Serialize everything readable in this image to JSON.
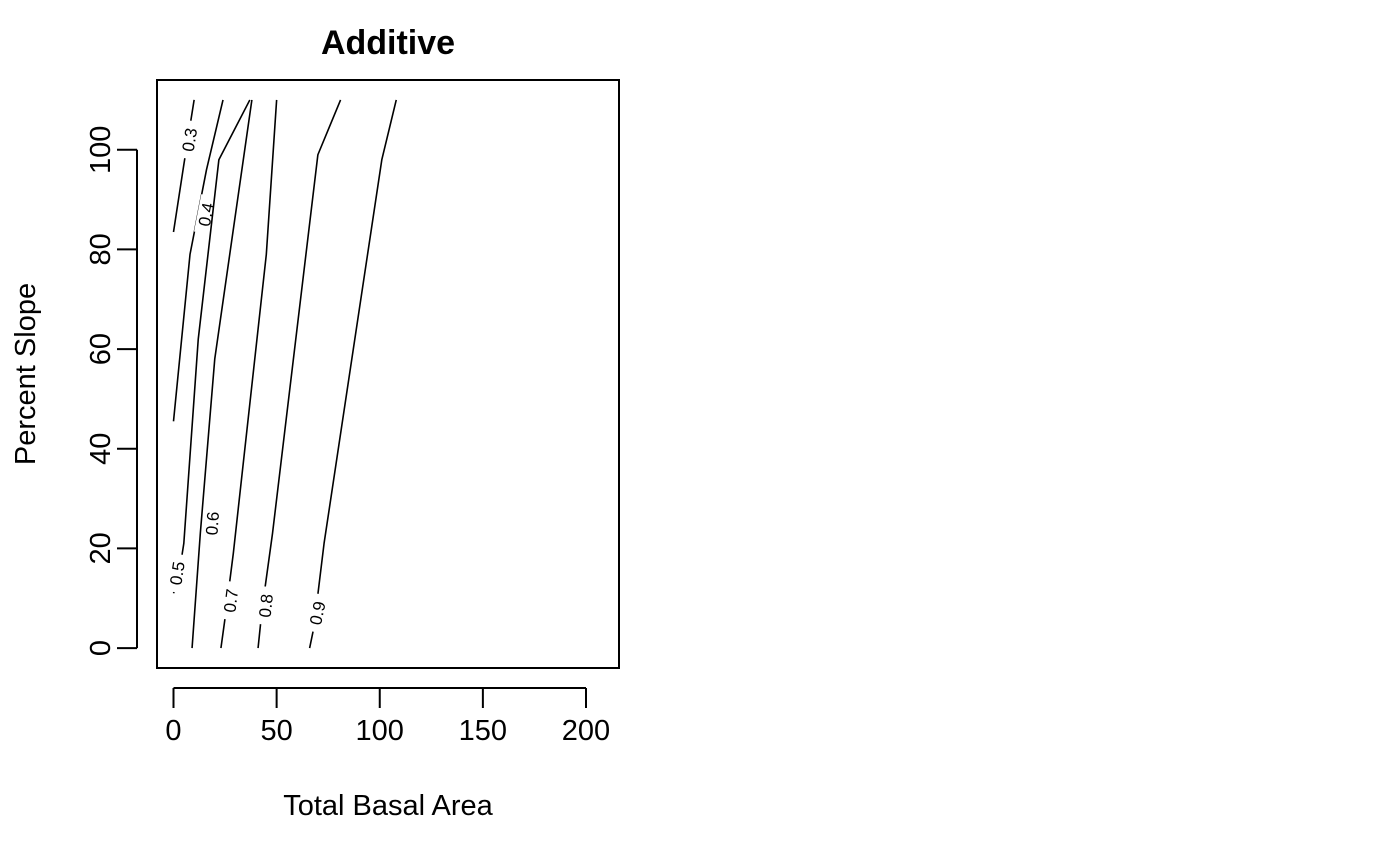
{
  "chart_data": {
    "type": "contour",
    "title": "Additive",
    "xlabel": "Total Basal Area",
    "ylabel": "Percent Slope",
    "xlim": [
      -8,
      216
    ],
    "ylim": [
      -4,
      114
    ],
    "xticks": [
      0,
      50,
      100,
      150,
      200
    ],
    "yticks": [
      0,
      20,
      40,
      60,
      80,
      100
    ],
    "grid": false,
    "legend": "none",
    "line_color": "#000000",
    "contours": [
      {
        "level": "0.3",
        "points": [
          [
            0,
            83.5
          ],
          [
            5,
            97
          ],
          [
            10,
            110
          ]
        ],
        "label_at": [
          8,
          102
        ]
      },
      {
        "level": "0.4",
        "points": [
          [
            0,
            45.5
          ],
          [
            8,
            79
          ],
          [
            16,
            96
          ],
          [
            24,
            110
          ]
        ],
        "label_at": [
          16,
          87
        ]
      },
      {
        "level": "0.5",
        "points": [
          [
            0,
            11
          ],
          [
            2,
            13
          ],
          [
            5,
            21
          ],
          [
            12,
            62
          ],
          [
            22,
            98
          ],
          [
            37,
            110
          ]
        ],
        "label_at": [
          2,
          15
        ]
      },
      {
        "level": "0.6",
        "points": [
          [
            9,
            0
          ],
          [
            13,
            23
          ],
          [
            20,
            58
          ],
          [
            38,
            110
          ]
        ],
        "label_at": [
          19,
          25
        ]
      },
      {
        "level": "0.7",
        "points": [
          [
            23,
            0
          ],
          [
            25,
            6
          ],
          [
            29,
            19
          ],
          [
            45,
            79
          ],
          [
            50,
            110
          ]
        ],
        "label_at": [
          28,
          9.5
        ]
      },
      {
        "level": "0.8",
        "points": [
          [
            41,
            0
          ],
          [
            43,
            8
          ],
          [
            48,
            23
          ],
          [
            70,
            99
          ],
          [
            81,
            110
          ]
        ],
        "label_at": [
          45,
          8.5
        ]
      },
      {
        "level": "0.9",
        "points": [
          [
            66,
            0
          ],
          [
            68,
            4
          ],
          [
            73,
            21
          ],
          [
            101,
            98
          ],
          [
            108,
            110
          ]
        ],
        "label_at": [
          70,
          7
        ]
      }
    ]
  }
}
